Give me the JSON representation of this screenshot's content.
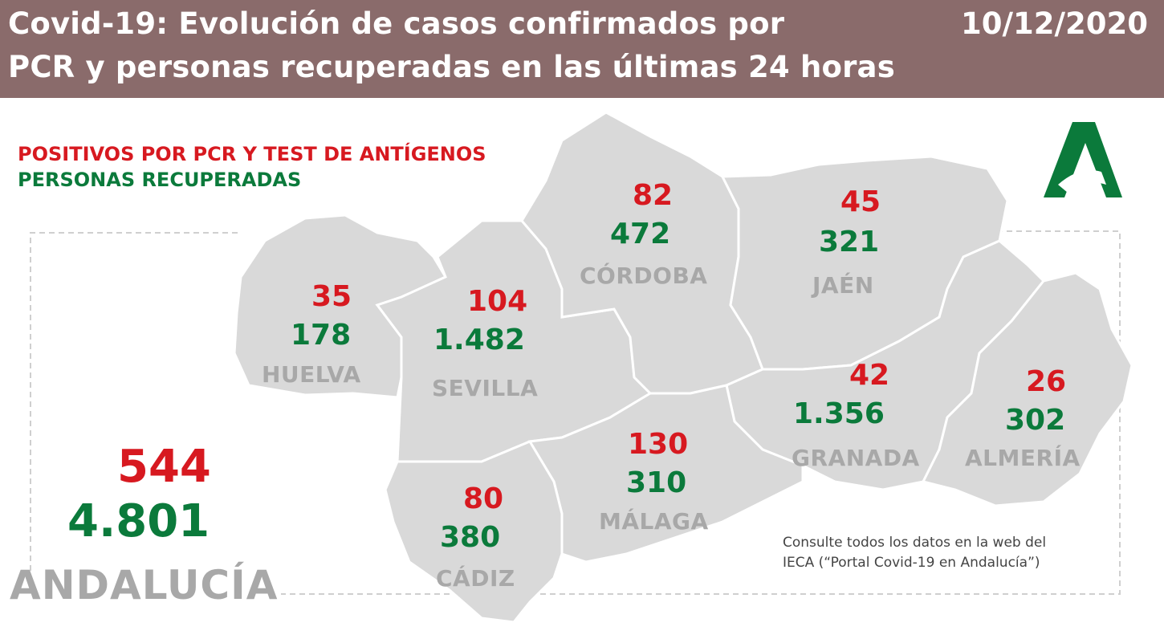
{
  "header": {
    "title_line1": "Covid-19: Evolución de casos confirmados por",
    "title_line2": "PCR y personas recuperadas en las últimas 24 horas",
    "date": "10/12/2020"
  },
  "legend": {
    "positives": "POSITIVOS POR PCR Y TEST DE ANTÍGENOS",
    "recovered": "PERSONAS RECUPERADAS"
  },
  "colors": {
    "positives": "#d71920",
    "recovered": "#0b7a3b",
    "header_bg": "#8a6b6b",
    "map_fill": "#d9d9d9",
    "province_label": "#a8a8a8",
    "logo_green": "#0b7a3b"
  },
  "logo": "junta-de-andalucia-a-logo",
  "provinces": {
    "huelva": {
      "name": "HUELVA",
      "positives": "35",
      "recovered": "178"
    },
    "sevilla": {
      "name": "SEVILLA",
      "positives": "104",
      "recovered": "1.482"
    },
    "cordoba": {
      "name": "CÓRDOBA",
      "positives": "82",
      "recovered": "472"
    },
    "jaen": {
      "name": "JAÉN",
      "positives": "45",
      "recovered": "321"
    },
    "granada": {
      "name": "GRANADA",
      "positives": "42",
      "recovered": "1.356"
    },
    "almeria": {
      "name": "ALMERÍA",
      "positives": "26",
      "recovered": "302"
    },
    "malaga": {
      "name": "MÁLAGA",
      "positives": "130",
      "recovered": "310"
    },
    "cadiz": {
      "name": "CÁDIZ",
      "positives": "80",
      "recovered": "380"
    }
  },
  "total": {
    "name": "ANDALUCÍA",
    "positives": "544",
    "recovered": "4.801"
  },
  "footnote": {
    "line1": "Consulte todos los datos en la web del",
    "line2": "IECA (“Portal Covid-19 en Andalucía”)"
  }
}
